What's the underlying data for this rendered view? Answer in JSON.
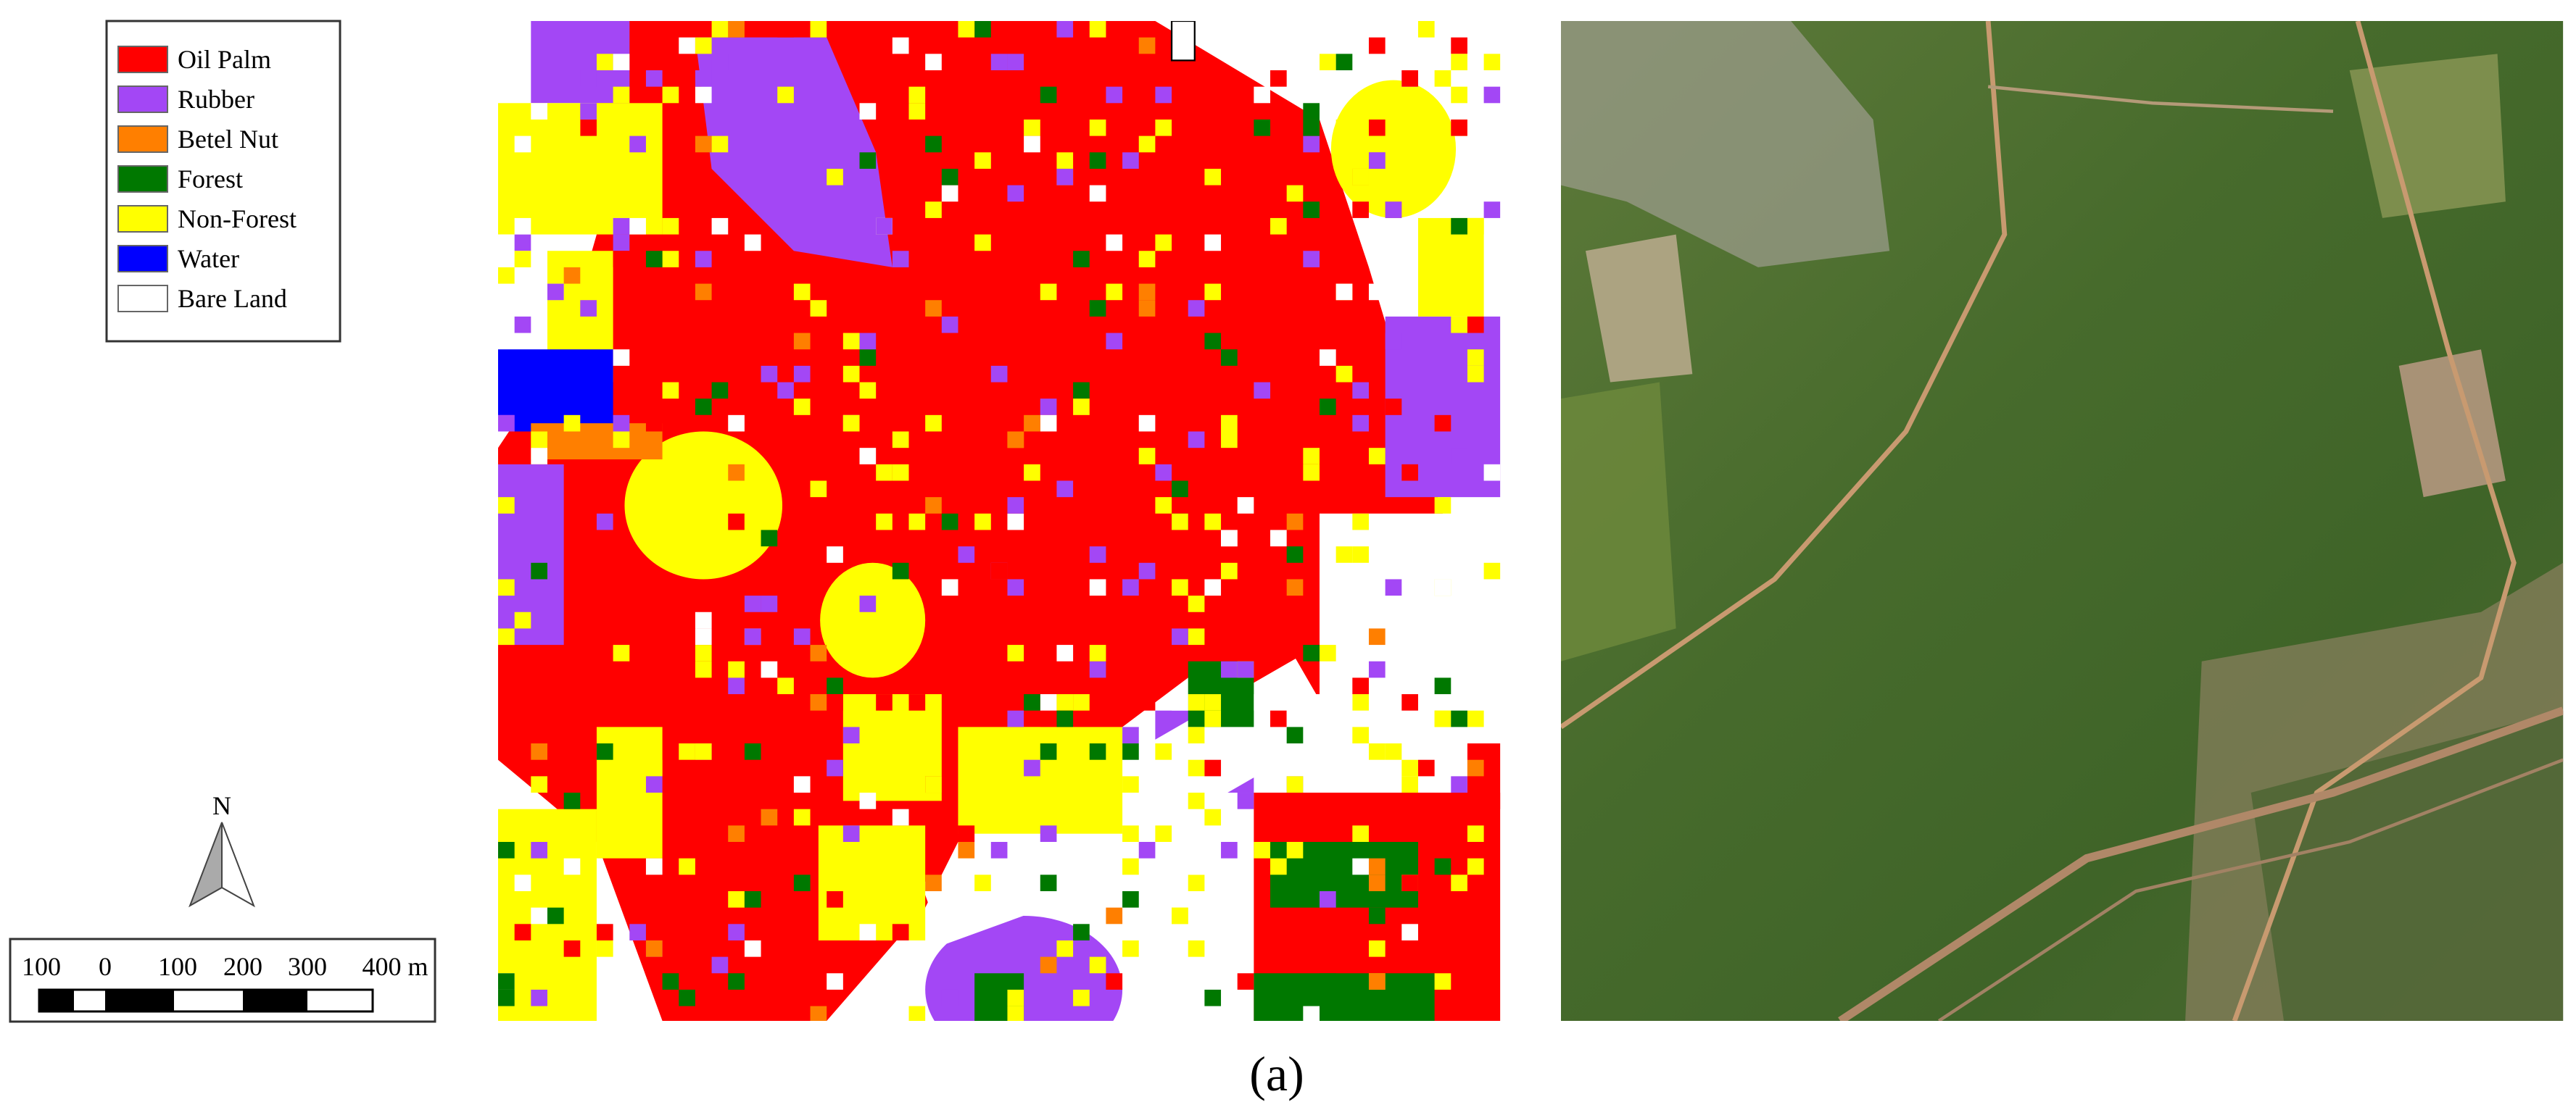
{
  "legend": {
    "items": [
      {
        "label": "Oil Palm",
        "color": "#ff0000"
      },
      {
        "label": "Rubber",
        "color": "#a347f5"
      },
      {
        "label": "Betel Nut",
        "color": "#ff7f00"
      },
      {
        "label": "Forest",
        "color": "#007800"
      },
      {
        "label": "Non-Forest",
        "color": "#ffff00"
      },
      {
        "label": "Water",
        "color": "#0000ff"
      },
      {
        "label": "Bare Land",
        "color": "#ffffff"
      }
    ]
  },
  "north_arrow": {
    "label": "N"
  },
  "scale_bar": {
    "labels": [
      "100",
      "0",
      "100",
      "200",
      "300",
      "400 m"
    ]
  },
  "caption": "(a)"
}
